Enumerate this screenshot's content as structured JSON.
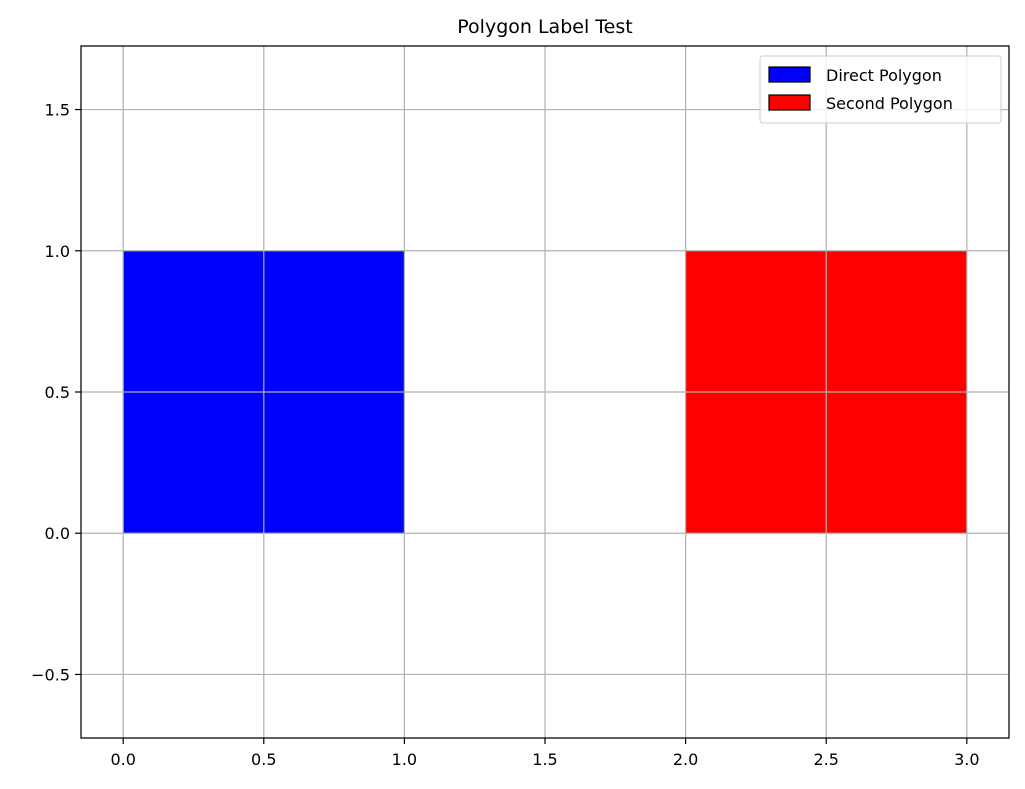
{
  "chart_data": {
    "type": "polygon",
    "title": "Polygon Label Test",
    "xlabel": "",
    "ylabel": "",
    "xlim": [
      -0.15,
      3.15
    ],
    "ylim": [
      -0.725,
      1.725
    ],
    "xticks": [
      0.0,
      0.5,
      1.0,
      1.5,
      2.0,
      2.5,
      3.0
    ],
    "xtick_labels": [
      "0.0",
      "0.5",
      "1.0",
      "1.5",
      "2.0",
      "2.5",
      "3.0"
    ],
    "yticks": [
      -0.5,
      0.0,
      0.5,
      1.0,
      1.5
    ],
    "ytick_labels": [
      "−0.5",
      "0.0",
      "0.5",
      "1.0",
      "1.5"
    ],
    "grid": true,
    "legend_position": "top-right",
    "series": [
      {
        "name": "Direct Polygon",
        "color": "#0000ff",
        "vertices": [
          [
            0,
            0
          ],
          [
            1,
            0
          ],
          [
            1,
            1
          ],
          [
            0,
            1
          ]
        ]
      },
      {
        "name": "Second Polygon",
        "color": "#ff0000",
        "vertices": [
          [
            2,
            0
          ],
          [
            3,
            0
          ],
          [
            3,
            1
          ],
          [
            2,
            1
          ]
        ]
      }
    ]
  }
}
